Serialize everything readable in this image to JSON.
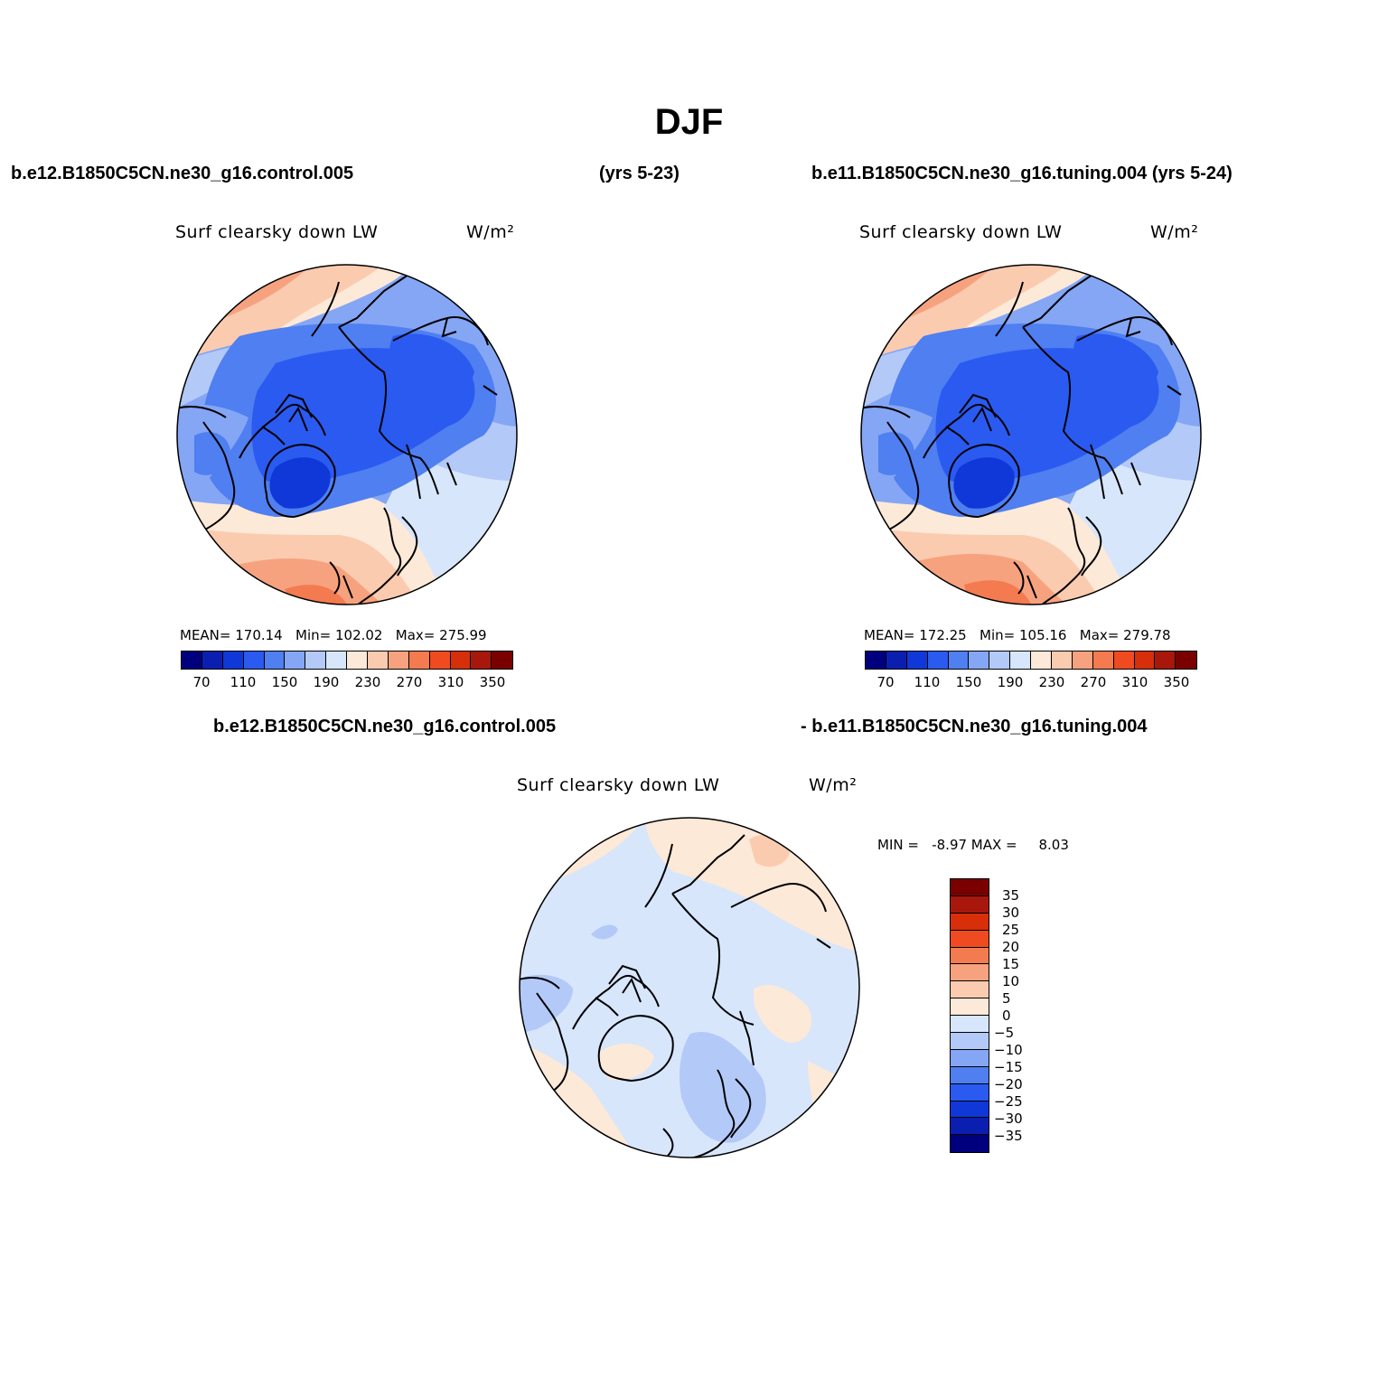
{
  "title": "DJF",
  "panels": [
    {
      "case_name": "b.e12.B1850C5CN.ne30_g16.control.005",
      "years": "(yrs 5-23)",
      "variable": "Surf clearsky down LW",
      "units": "W/m²",
      "stats": "MEAN= 170.14   Min= 102.02   Max= 275.99",
      "colorbar_labels": [
        "70",
        "110",
        "150",
        "190",
        "230",
        "270",
        "310",
        "350"
      ]
    },
    {
      "case_name": "b.e11.B1850C5CN.ne30_g16.tuning.004 (yrs 5-24)",
      "variable": "Surf clearsky down LW",
      "units": "W/m²",
      "stats": "MEAN= 172.25   Min= 105.16   Max= 279.78",
      "colorbar_labels": [
        "70",
        "110",
        "150",
        "190",
        "230",
        "270",
        "310",
        "350"
      ]
    },
    {
      "case_a": "b.e12.B1850C5CN.ne30_g16.control.005",
      "case_b": "- b.e11.B1850C5CN.ne30_g16.tuning.004",
      "variable": "Surf clearsky down LW",
      "units": "W/m²",
      "stats": "MIN =   -8.97 MAX =     8.03",
      "colorbar_labels": [
        "35",
        "30",
        "25",
        "20",
        "15",
        "10",
        "5",
        "0",
        "-5",
        "-10",
        "-15",
        "-20",
        "-25",
        "-30",
        "-35"
      ]
    }
  ],
  "colors": {
    "sequential": [
      "#00007f",
      "#0a1fb0",
      "#1038d8",
      "#2a5af0",
      "#4f7ff0",
      "#85a6f5",
      "#b3c9f8",
      "#d7e6fb",
      "#fde9d8",
      "#fbcbb0",
      "#f7a27f",
      "#f47a50",
      "#ef4a20",
      "#d62f09",
      "#a8170c",
      "#7a0000"
    ],
    "diverging": [
      "#7a0000",
      "#a8170c",
      "#d62f09",
      "#ef4a20",
      "#f47a50",
      "#f7a27f",
      "#fbcbb0",
      "#fde9d8",
      "#d7e6fb",
      "#b3c9f8",
      "#85a6f5",
      "#4f7ff0",
      "#2a5af0",
      "#1038d8",
      "#0a1fb0",
      "#00007f"
    ]
  }
}
